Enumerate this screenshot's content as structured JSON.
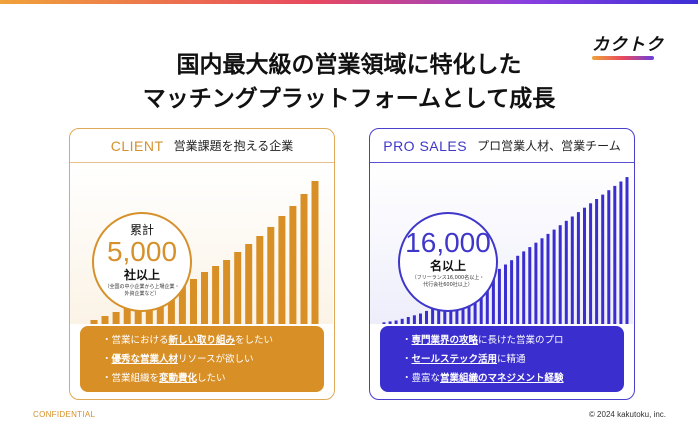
{
  "logo": {
    "text": "カクトク"
  },
  "headline": {
    "line1": "国内最大級の営業領域に特化した",
    "line2": "マッチングプラットフォームとして成長"
  },
  "client": {
    "tag": "CLIENT",
    "title": "営業課題を抱える企業",
    "badge_label": "累計",
    "badge_number": "5,000",
    "badge_unit": "社以上",
    "badge_note": "（全国の中小企業から上場企業・外資企業など）",
    "points": [
      {
        "pre": "営業における",
        "em": "新しい取り組み",
        "post": "をしたい"
      },
      {
        "pre": "",
        "em": "優秀な営業人材",
        "post": "リソースが欲しい"
      },
      {
        "pre": "営業組織を",
        "em": "変動費化",
        "post": "したい"
      }
    ],
    "color": "#d88f26"
  },
  "pro": {
    "tag": "PRO SALES",
    "title": "プロ営業人材、営業チーム",
    "badge_number": "16,000",
    "badge_unit": "名以上",
    "badge_note_1": "（フリーランス16,000名以上・",
    "badge_note_2": "代行会社600社以上）",
    "points": [
      {
        "pre": "",
        "em": "専門業界の攻略",
        "post": "に長けた営業のプロ"
      },
      {
        "pre": "",
        "em": "セールステック活用",
        "post": "に精通"
      },
      {
        "pre": "豊富な",
        "em": "営業組織のマネジメント経験",
        "post": ""
      }
    ],
    "color": "#3a2fce"
  },
  "chart_data": [
    {
      "type": "bar",
      "series": [
        {
          "values": [
            4,
            8,
            12,
            16,
            21,
            25,
            30,
            35,
            40,
            45,
            52,
            58,
            64,
            72,
            80,
            88,
            97,
            108,
            118,
            130,
            143
          ]
        }
      ],
      "ylim": [
        0,
        150
      ],
      "color": "#d88f26"
    },
    {
      "type": "bar",
      "series": [
        {
          "values": [
            2,
            3,
            4,
            6,
            8,
            10,
            12,
            15,
            18,
            21,
            24,
            28,
            32,
            36,
            40,
            44,
            48,
            53,
            58,
            63,
            68,
            73,
            78,
            83,
            88,
            93,
            98,
            103,
            108,
            113,
            118,
            123,
            128,
            133,
            138,
            143,
            148,
            153,
            158,
            163,
            168
          ]
        }
      ],
      "ylim": [
        0,
        175
      ],
      "color": "#3a2fce"
    }
  ],
  "footer": {
    "left": "CONFIDENTIAL",
    "right": "© 2024 kakutoku, inc."
  }
}
